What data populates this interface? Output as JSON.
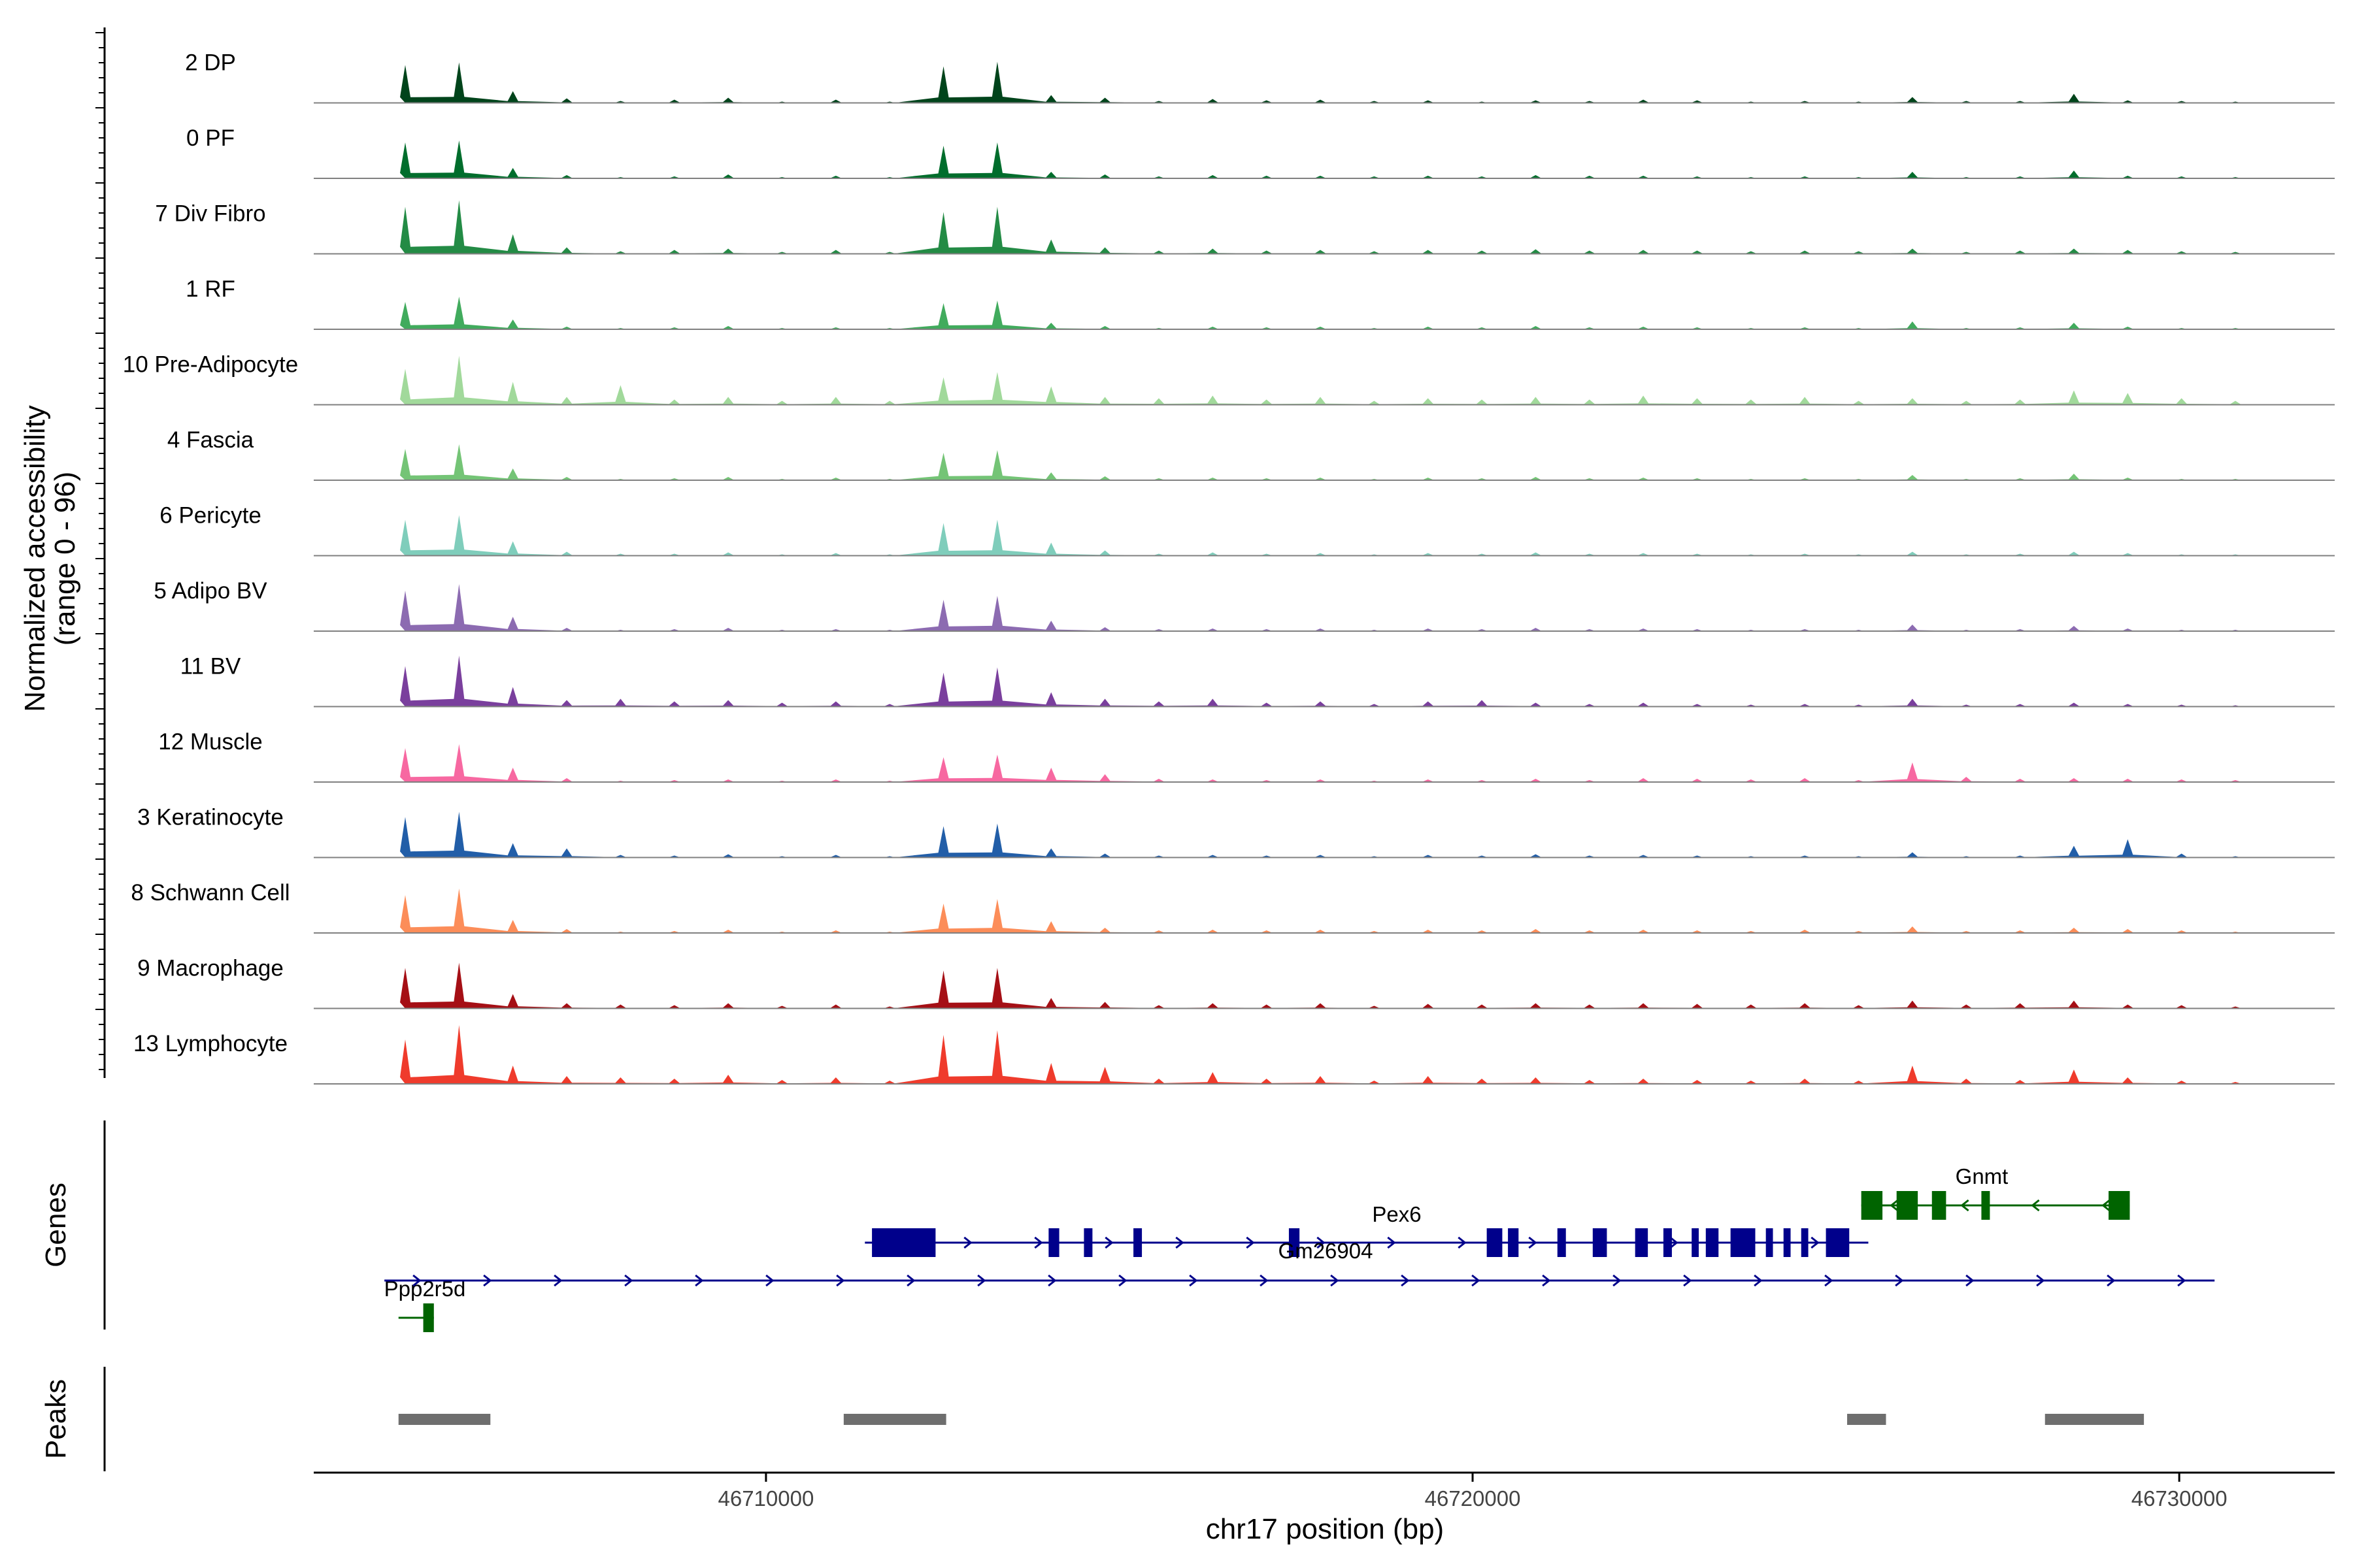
{
  "chart_data": {
    "type": "area",
    "title": "",
    "region": {
      "chromosome": "chr17",
      "start": 46703600,
      "end": 46732200
    },
    "xlabel": "chr17 position (bp)",
    "xticks": [
      46710000,
      46720000,
      46730000
    ],
    "xtick_labels": [
      "46710000",
      "46720000",
      "46730000"
    ],
    "ylabel_line1": "Normalized accessibility",
    "ylabel_line2": "(range 0 - 96)",
    "ylim": [
      0,
      96
    ],
    "panel_labels": {
      "genes": "Genes",
      "peaks": "Peaks"
    },
    "peak_color": "#6e6e6e",
    "tracks": [
      {
        "name": "2 DP",
        "color": "#00441b",
        "values": [
          0.58,
          0.62,
          0.18,
          0.07,
          0.03,
          0.05,
          0.08,
          0.02,
          0.05,
          0.02,
          0.56,
          0.63,
          0.12,
          0.08,
          0.03,
          0.06,
          0.04,
          0.05,
          0.03,
          0.04,
          0.02,
          0.04,
          0.03,
          0.05,
          0.04,
          0.02,
          0.03,
          0.02,
          0.09,
          0.03,
          0.03,
          0.14,
          0.04,
          0.03,
          0.02
        ]
      },
      {
        "name": "0 PF",
        "color": "#006d2c",
        "values": [
          0.55,
          0.58,
          0.16,
          0.05,
          0.02,
          0.03,
          0.06,
          0.02,
          0.04,
          0.02,
          0.5,
          0.55,
          0.1,
          0.06,
          0.03,
          0.05,
          0.04,
          0.04,
          0.03,
          0.04,
          0.03,
          0.05,
          0.04,
          0.04,
          0.03,
          0.02,
          0.03,
          0.02,
          0.1,
          0.02,
          0.03,
          0.12,
          0.04,
          0.03,
          0.02
        ]
      },
      {
        "name": "7 Div Fibro",
        "color": "#238b45",
        "values": [
          0.72,
          0.82,
          0.3,
          0.1,
          0.04,
          0.06,
          0.08,
          0.03,
          0.06,
          0.03,
          0.64,
          0.72,
          0.22,
          0.1,
          0.05,
          0.08,
          0.05,
          0.06,
          0.04,
          0.06,
          0.05,
          0.07,
          0.05,
          0.06,
          0.05,
          0.04,
          0.05,
          0.04,
          0.08,
          0.03,
          0.05,
          0.08,
          0.06,
          0.04,
          0.03
        ]
      },
      {
        "name": "1 RF",
        "color": "#41ab5d",
        "values": [
          0.42,
          0.5,
          0.15,
          0.04,
          0.02,
          0.03,
          0.05,
          0.02,
          0.03,
          0.02,
          0.4,
          0.44,
          0.1,
          0.05,
          0.02,
          0.04,
          0.03,
          0.04,
          0.02,
          0.04,
          0.03,
          0.05,
          0.03,
          0.04,
          0.03,
          0.02,
          0.03,
          0.02,
          0.12,
          0.02,
          0.03,
          0.1,
          0.04,
          0.02,
          0.02
        ]
      },
      {
        "name": "10 Pre-Adipocyte",
        "color": "#a1d99b",
        "values": [
          0.55,
          0.75,
          0.35,
          0.12,
          0.3,
          0.08,
          0.12,
          0.06,
          0.12,
          0.06,
          0.42,
          0.5,
          0.28,
          0.12,
          0.1,
          0.14,
          0.08,
          0.12,
          0.06,
          0.1,
          0.08,
          0.12,
          0.08,
          0.14,
          0.1,
          0.08,
          0.12,
          0.06,
          0.1,
          0.06,
          0.08,
          0.22,
          0.18,
          0.1,
          0.06
        ]
      },
      {
        "name": "4 Fascia",
        "color": "#74c476",
        "values": [
          0.48,
          0.55,
          0.18,
          0.05,
          0.02,
          0.03,
          0.05,
          0.02,
          0.04,
          0.02,
          0.42,
          0.46,
          0.12,
          0.06,
          0.03,
          0.04,
          0.03,
          0.04,
          0.02,
          0.04,
          0.03,
          0.05,
          0.03,
          0.04,
          0.03,
          0.02,
          0.03,
          0.02,
          0.08,
          0.02,
          0.03,
          0.1,
          0.04,
          0.02,
          0.02
        ]
      },
      {
        "name": "6 Pericyte",
        "color": "#7fcdbb",
        "values": [
          0.55,
          0.62,
          0.22,
          0.06,
          0.03,
          0.03,
          0.05,
          0.02,
          0.04,
          0.02,
          0.5,
          0.55,
          0.2,
          0.08,
          0.03,
          0.05,
          0.03,
          0.04,
          0.02,
          0.04,
          0.03,
          0.05,
          0.03,
          0.04,
          0.03,
          0.02,
          0.03,
          0.02,
          0.06,
          0.02,
          0.03,
          0.06,
          0.04,
          0.02,
          0.02
        ]
      },
      {
        "name": "5 Adipo BV",
        "color": "#8c6bb1",
        "values": [
          0.62,
          0.72,
          0.22,
          0.05,
          0.02,
          0.03,
          0.05,
          0.02,
          0.03,
          0.02,
          0.48,
          0.54,
          0.16,
          0.06,
          0.03,
          0.04,
          0.03,
          0.04,
          0.02,
          0.04,
          0.03,
          0.05,
          0.03,
          0.04,
          0.03,
          0.02,
          0.03,
          0.02,
          0.1,
          0.02,
          0.03,
          0.08,
          0.04,
          0.02,
          0.02
        ]
      },
      {
        "name": "11 BV",
        "color": "#7a3f9d",
        "values": [
          0.62,
          0.78,
          0.3,
          0.1,
          0.12,
          0.08,
          0.1,
          0.06,
          0.08,
          0.04,
          0.52,
          0.6,
          0.22,
          0.12,
          0.08,
          0.12,
          0.06,
          0.08,
          0.04,
          0.08,
          0.1,
          0.06,
          0.04,
          0.06,
          0.04,
          0.03,
          0.04,
          0.03,
          0.12,
          0.03,
          0.04,
          0.06,
          0.04,
          0.03,
          0.02
        ]
      },
      {
        "name": "12 Muscle",
        "color": "#f768a1",
        "values": [
          0.52,
          0.58,
          0.22,
          0.06,
          0.02,
          0.03,
          0.04,
          0.02,
          0.04,
          0.02,
          0.38,
          0.42,
          0.22,
          0.12,
          0.05,
          0.04,
          0.03,
          0.04,
          0.02,
          0.04,
          0.03,
          0.05,
          0.03,
          0.06,
          0.05,
          0.04,
          0.06,
          0.03,
          0.3,
          0.08,
          0.05,
          0.06,
          0.05,
          0.04,
          0.03
        ]
      },
      {
        "name": "3 Keratinocyte",
        "color": "#225ea8",
        "values": [
          0.62,
          0.7,
          0.22,
          0.14,
          0.04,
          0.03,
          0.05,
          0.02,
          0.04,
          0.02,
          0.48,
          0.52,
          0.14,
          0.06,
          0.03,
          0.04,
          0.03,
          0.04,
          0.02,
          0.04,
          0.03,
          0.05,
          0.03,
          0.04,
          0.03,
          0.02,
          0.03,
          0.02,
          0.08,
          0.02,
          0.03,
          0.18,
          0.28,
          0.06,
          0.02
        ]
      },
      {
        "name": "8 Schwann Cell",
        "color": "#fc8d59",
        "values": [
          0.58,
          0.68,
          0.2,
          0.06,
          0.02,
          0.03,
          0.05,
          0.02,
          0.04,
          0.02,
          0.45,
          0.52,
          0.18,
          0.08,
          0.04,
          0.05,
          0.04,
          0.05,
          0.03,
          0.05,
          0.04,
          0.06,
          0.04,
          0.05,
          0.04,
          0.03,
          0.05,
          0.03,
          0.1,
          0.03,
          0.04,
          0.08,
          0.06,
          0.04,
          0.02
        ]
      },
      {
        "name": "9 Macrophage",
        "color": "#a50f15",
        "values": [
          0.62,
          0.7,
          0.22,
          0.08,
          0.06,
          0.05,
          0.08,
          0.04,
          0.06,
          0.03,
          0.58,
          0.62,
          0.16,
          0.1,
          0.05,
          0.08,
          0.06,
          0.08,
          0.04,
          0.07,
          0.06,
          0.08,
          0.06,
          0.08,
          0.07,
          0.06,
          0.08,
          0.05,
          0.12,
          0.06,
          0.08,
          0.12,
          0.06,
          0.05,
          0.03
        ]
      },
      {
        "name": "13 Lymphocyte",
        "color": "#ef3b2c",
        "values": [
          0.68,
          0.9,
          0.28,
          0.12,
          0.1,
          0.08,
          0.14,
          0.06,
          0.1,
          0.05,
          0.75,
          0.82,
          0.32,
          0.26,
          0.08,
          0.18,
          0.08,
          0.12,
          0.05,
          0.12,
          0.08,
          0.1,
          0.06,
          0.08,
          0.06,
          0.05,
          0.08,
          0.05,
          0.28,
          0.08,
          0.06,
          0.22,
          0.1,
          0.05,
          0.03
        ]
      }
    ],
    "genes": [
      {
        "name": "Ppp2r5d",
        "strand": "-",
        "color": "#006400",
        "start": 46704800,
        "end": 46705300,
        "exons": [
          [
            46705150,
            46705300
          ]
        ]
      },
      {
        "name": "Pex6",
        "strand": "+",
        "color": "#00008b",
        "start": 46711400,
        "end": 46725600,
        "exons": [
          [
            46711500,
            46712400
          ],
          [
            46714000,
            46714150
          ],
          [
            46714500,
            46714620
          ],
          [
            46715200,
            46715320
          ],
          [
            46717400,
            46717550
          ],
          [
            46720200,
            46720420
          ],
          [
            46720500,
            46720650
          ],
          [
            46721200,
            46721320
          ],
          [
            46721700,
            46721900
          ],
          [
            46722300,
            46722480
          ],
          [
            46722700,
            46722820
          ],
          [
            46723100,
            46723200
          ],
          [
            46723300,
            46723480
          ],
          [
            46723650,
            46724000
          ],
          [
            46724150,
            46724250
          ],
          [
            46724400,
            46724500
          ],
          [
            46724650,
            46724750
          ],
          [
            46725000,
            46725330
          ]
        ]
      },
      {
        "name": "Gm26904",
        "strand": "+",
        "color": "#00008b",
        "start": 46704600,
        "end": 46730500,
        "exons": []
      },
      {
        "name": "Gnmt",
        "strand": "-",
        "color": "#006400",
        "start": 46725500,
        "end": 46729300,
        "exons": [
          [
            46725500,
            46725800
          ],
          [
            46726000,
            46726300
          ],
          [
            46726500,
            46726700
          ],
          [
            46727200,
            46727320
          ],
          [
            46729000,
            46729300
          ]
        ]
      }
    ],
    "peaks": [
      [
        46704800,
        46706100
      ],
      [
        46711100,
        46712550
      ],
      [
        46725300,
        46725850
      ],
      [
        46728100,
        46729500
      ]
    ]
  }
}
